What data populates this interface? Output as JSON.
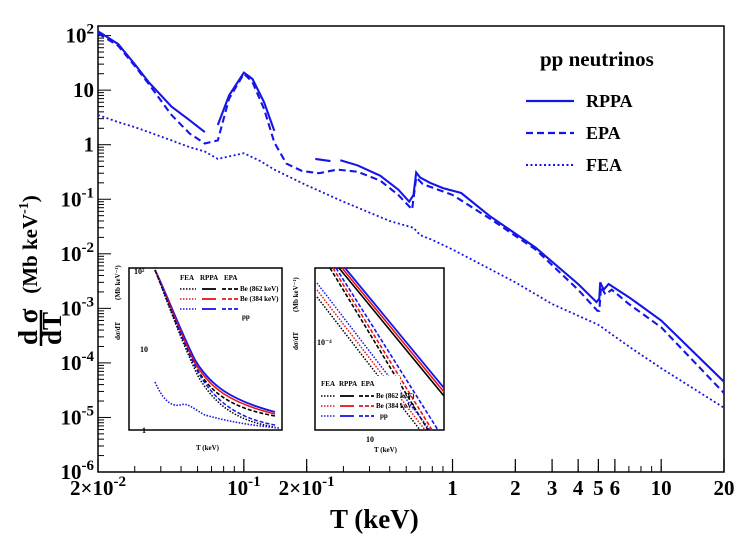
{
  "chart_data": {
    "type": "line",
    "title": "pp neutrinos",
    "xlabel": "T (keV)",
    "ylabel": "dσ/dT (Mb keV⁻¹)",
    "xscale": "log",
    "yscale": "log",
    "xlim": [
      0.02,
      20
    ],
    "ylim": [
      1e-06,
      150
    ],
    "x_ticks": [
      {
        "v": 0.02,
        "base": "2×10",
        "exp": "-2"
      },
      {
        "v": 0.1,
        "base": "10",
        "exp": "-1"
      },
      {
        "v": 0.2,
        "base": "2×10",
        "exp": "-1"
      },
      {
        "v": 1,
        "base": "1",
        "exp": ""
      },
      {
        "v": 2,
        "base": "2",
        "exp": ""
      },
      {
        "v": 3,
        "base": "3",
        "exp": ""
      },
      {
        "v": 4,
        "base": "4",
        "exp": ""
      },
      {
        "v": 5,
        "base": "5",
        "exp": ""
      },
      {
        "v": 6,
        "base": "6",
        "exp": ""
      },
      {
        "v": 10,
        "base": "10",
        "exp": ""
      },
      {
        "v": 20,
        "base": "20",
        "exp": ""
      }
    ],
    "y_ticks": [
      {
        "v": 100,
        "base": "10",
        "exp": "2"
      },
      {
        "v": 10,
        "base": "10",
        "exp": ""
      },
      {
        "v": 1,
        "base": "1",
        "exp": ""
      },
      {
        "v": 0.1,
        "base": "10",
        "exp": "-1"
      },
      {
        "v": 0.01,
        "base": "10",
        "exp": "-2"
      },
      {
        "v": 0.001,
        "base": "10",
        "exp": "-3"
      },
      {
        "v": 0.0001,
        "base": "10",
        "exp": "-4"
      },
      {
        "v": 1e-05,
        "base": "10",
        "exp": "-5"
      },
      {
        "v": 1e-06,
        "base": "10",
        "exp": "-6"
      }
    ],
    "series": [
      {
        "name": "RPPA",
        "style": "solid",
        "color": "#1515e8",
        "segments": [
          [
            [
              0.02,
              120
            ],
            [
              0.025,
              70
            ],
            [
              0.03,
              30
            ],
            [
              0.035,
              14
            ],
            [
              0.045,
              5
            ],
            [
              0.055,
              2.8
            ],
            [
              0.065,
              1.7
            ]
          ],
          [
            [
              0.075,
              2.3
            ],
            [
              0.085,
              8
            ],
            [
              0.1,
              21
            ],
            [
              0.11,
              16
            ],
            [
              0.125,
              6
            ],
            [
              0.14,
              1.8
            ]
          ],
          [
            [
              0.22,
              0.55
            ],
            [
              0.26,
              0.5
            ]
          ],
          [
            [
              0.29,
              0.52
            ],
            [
              0.35,
              0.42
            ],
            [
              0.45,
              0.27
            ],
            [
              0.55,
              0.15
            ],
            [
              0.62,
              0.09
            ],
            [
              0.65,
              0.12
            ],
            [
              0.67,
              0.31
            ],
            [
              0.7,
              0.25
            ],
            [
              0.78,
              0.2
            ],
            [
              0.9,
              0.16
            ],
            [
              1.1,
              0.13
            ],
            [
              1.5,
              0.05
            ],
            [
              2.5,
              0.013
            ],
            [
              4.0,
              0.0028
            ],
            [
              4.9,
              0.0013
            ],
            [
              5.05,
              0.0015
            ],
            [
              5.1,
              0.003
            ],
            [
              5.3,
              0.0022
            ],
            [
              5.6,
              0.0028
            ],
            [
              7,
              0.0016
            ],
            [
              10,
              0.0006
            ],
            [
              20,
              4.5e-05
            ]
          ]
        ]
      },
      {
        "name": "EPA",
        "style": "dashed",
        "color": "#1515e8",
        "segments": [
          [
            [
              0.02,
              110
            ],
            [
              0.025,
              65
            ],
            [
              0.03,
              28
            ],
            [
              0.035,
              13
            ],
            [
              0.045,
              3.5
            ],
            [
              0.055,
              1.6
            ],
            [
              0.065,
              1.05
            ],
            [
              0.075,
              1.2
            ],
            [
              0.085,
              7
            ],
            [
              0.1,
              20
            ],
            [
              0.11,
              14
            ],
            [
              0.125,
              4.5
            ],
            [
              0.14,
              1.1
            ],
            [
              0.16,
              0.45
            ],
            [
              0.19,
              0.33
            ],
            [
              0.23,
              0.3
            ],
            [
              0.28,
              0.35
            ],
            [
              0.35,
              0.32
            ],
            [
              0.45,
              0.22
            ],
            [
              0.55,
              0.12
            ],
            [
              0.64,
              0.065
            ],
            [
              0.67,
              0.25
            ],
            [
              0.72,
              0.19
            ],
            [
              0.85,
              0.15
            ],
            [
              1.0,
              0.12
            ],
            [
              1.5,
              0.045
            ],
            [
              2.5,
              0.012
            ],
            [
              4.0,
              0.0022
            ],
            [
              4.95,
              0.0009
            ],
            [
              5.05,
              0.0009
            ],
            [
              5.15,
              0.0025
            ],
            [
              5.4,
              0.0018
            ],
            [
              5.8,
              0.0022
            ],
            [
              7,
              0.0012
            ],
            [
              10,
              0.00045
            ],
            [
              20,
              2.8e-05
            ]
          ]
        ]
      },
      {
        "name": "FEA",
        "style": "dotted",
        "color": "#1515e8",
        "segments": [
          [
            [
              0.02,
              3.5
            ],
            [
              0.025,
              2.6
            ],
            [
              0.03,
              2.1
            ],
            [
              0.035,
              1.7
            ],
            [
              0.045,
              1.2
            ],
            [
              0.055,
              0.9
            ],
            [
              0.065,
              0.75
            ],
            [
              0.075,
              0.55
            ],
            [
              0.1,
              0.7
            ],
            [
              0.12,
              0.5
            ],
            [
              0.14,
              0.35
            ],
            [
              0.2,
              0.18
            ],
            [
              0.3,
              0.09
            ],
            [
              0.5,
              0.04
            ],
            [
              0.65,
              0.03
            ],
            [
              0.7,
              0.022
            ],
            [
              0.8,
              0.018
            ],
            [
              1,
              0.012
            ],
            [
              2,
              0.003
            ],
            [
              3,
              0.0012
            ],
            [
              5,
              0.0005
            ],
            [
              7,
              0.0002
            ],
            [
              10,
              8e-05
            ],
            [
              20,
              1.5e-05
            ]
          ]
        ]
      }
    ],
    "insets": [
      {
        "ylabel": "dσ/dT",
        "yunit": "(Mb keV⁻¹)",
        "xlabel": "T (keV)",
        "y_ticks": [
          {
            "v": 100,
            "label": "10²"
          },
          {
            "v": 10,
            "label": "10"
          },
          {
            "v": 1,
            "label": "1"
          }
        ],
        "legend_header": [
          "FEA",
          "RPPA",
          "EPA"
        ],
        "legend_entries": [
          "Be (862 keV)",
          "Be (384 keV)",
          "pp"
        ]
      },
      {
        "ylabel": "dσ/dT",
        "yunit": "(Mb keV⁻¹)",
        "xlabel": "T (keV)",
        "y_ticks": [
          {
            "v": 0.0001,
            "label": "10⁻⁴"
          }
        ],
        "x_ticks": [
          {
            "v": 10,
            "label": "10"
          }
        ],
        "legend_header": [
          "FEA",
          "RPPA",
          "EPA"
        ],
        "legend_entries": [
          "Be (862 keV)",
          "Be (384 keV)",
          "pp"
        ]
      }
    ],
    "legend_position": "top-right"
  }
}
